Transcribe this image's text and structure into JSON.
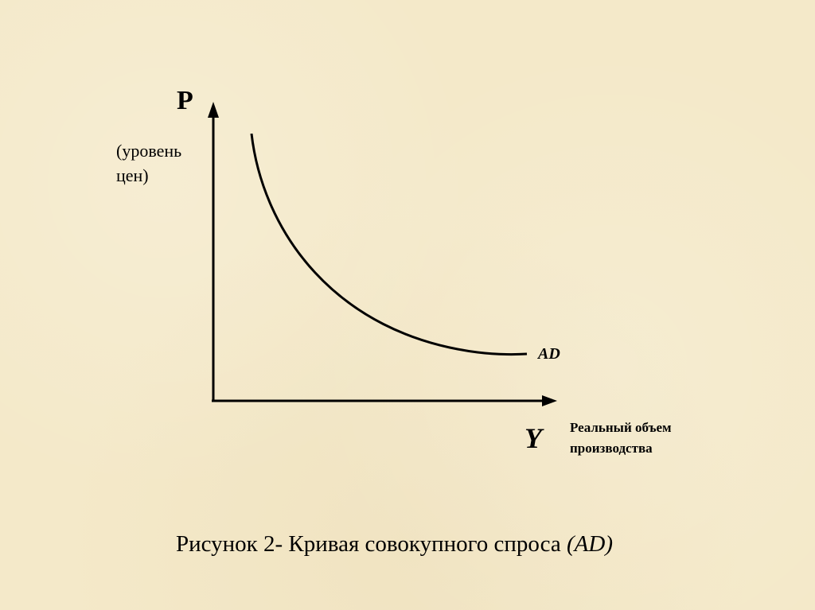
{
  "diagram": {
    "y_axis": {
      "symbol": "P",
      "description": "(уровень цен)"
    },
    "x_axis": {
      "symbol": "Y",
      "description": "Реальный объем производства"
    },
    "curve": {
      "label": "AD",
      "shape": "downward-sloping convex demand curve"
    },
    "colors": {
      "background": "#f4e9c9",
      "ink": "#000000"
    }
  },
  "caption": {
    "main": "Рисунок 2- Кривая совокупного спроса",
    "italic": "(AD)"
  }
}
